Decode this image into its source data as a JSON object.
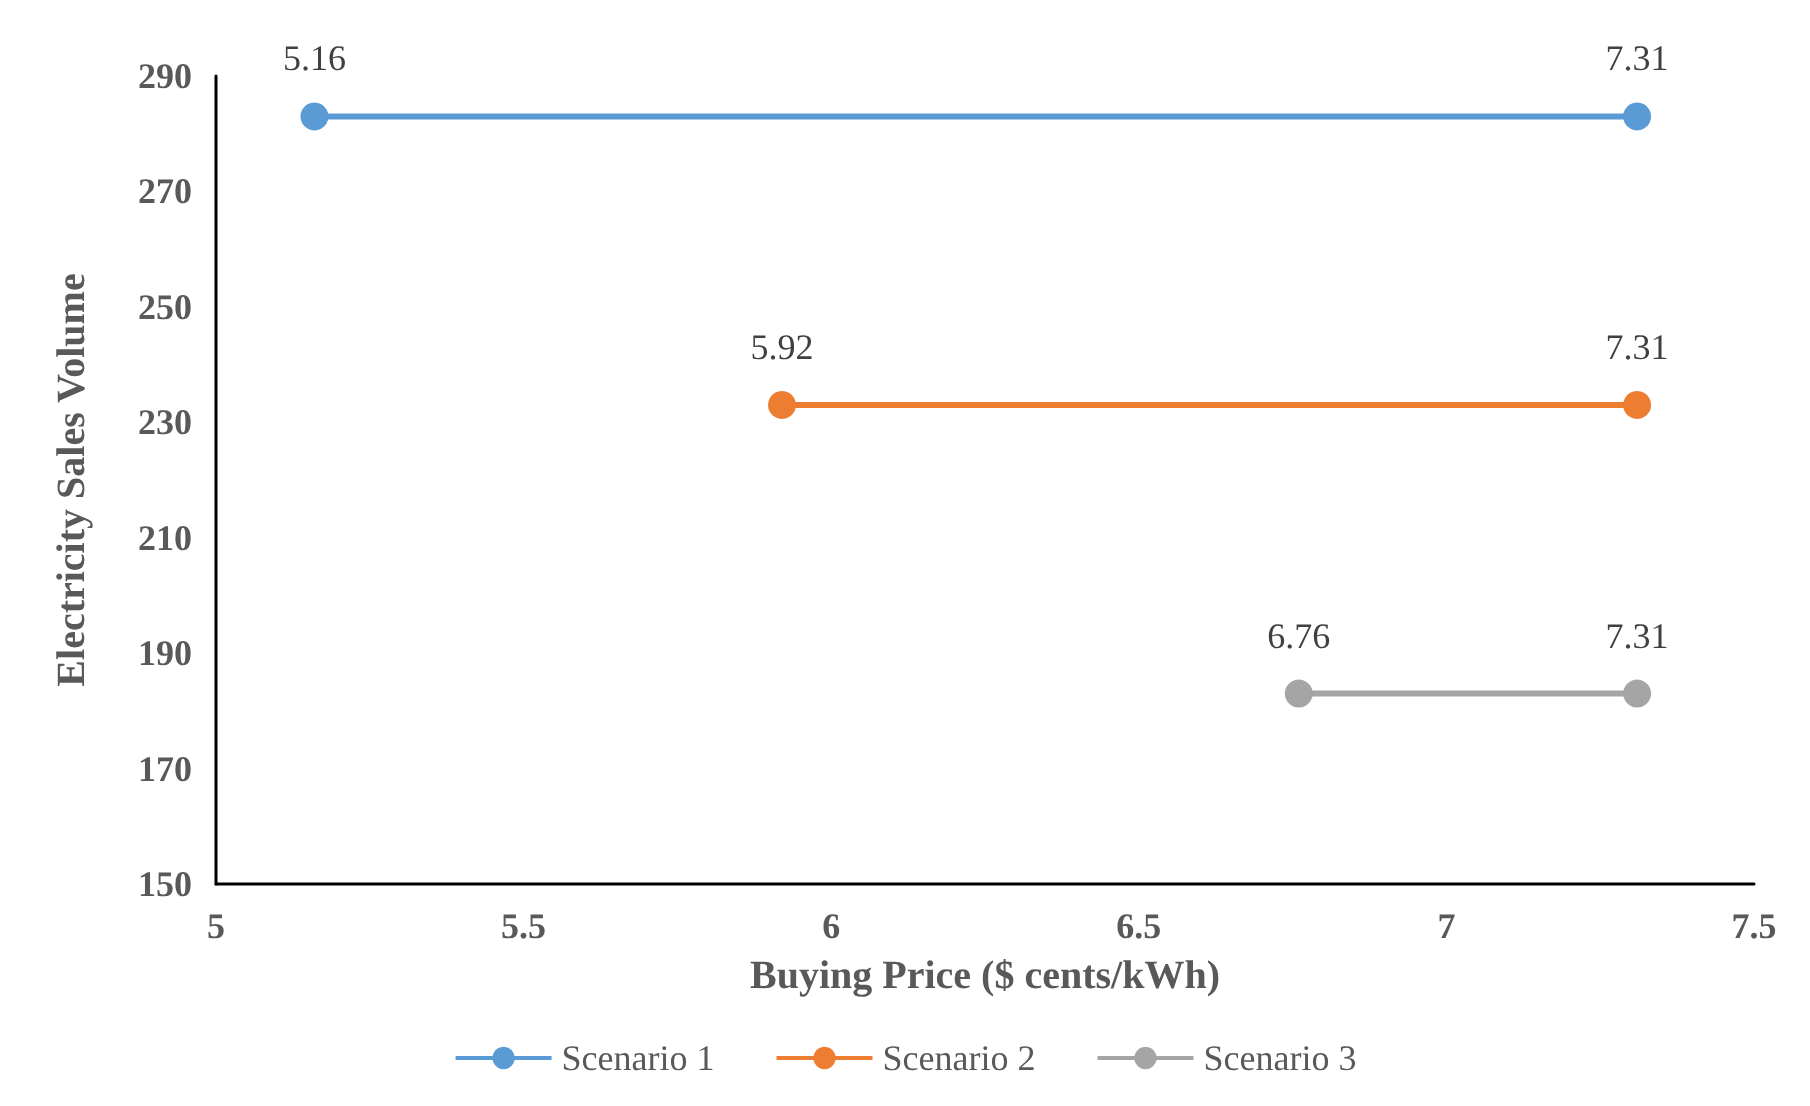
{
  "chart_data": {
    "type": "line",
    "xlabel": "Buying Price ($ cents/kWh)",
    "ylabel": "Electricity Sales Volume",
    "xlim": [
      5,
      7.5
    ],
    "xticks": [
      5,
      5.5,
      6,
      6.5,
      7,
      7.5
    ],
    "ylim": [
      150,
      290
    ],
    "yticks": [
      150,
      170,
      190,
      210,
      230,
      250,
      270,
      290
    ],
    "grid": false,
    "legend": "bottom",
    "marker": "circle",
    "line_style": "solid",
    "series": [
      {
        "name": "Scenario 1",
        "color": "#5b9bd5",
        "x": [
          5.16,
          7.31
        ],
        "values": [
          283,
          283
        ]
      },
      {
        "name": "Scenario 2",
        "color": "#ed7d31",
        "x": [
          5.92,
          7.31
        ],
        "values": [
          233,
          233
        ]
      },
      {
        "name": "Scenario 3",
        "color": "#a5a5a5",
        "x": [
          6.76,
          7.31
        ],
        "values": [
          183,
          183
        ]
      }
    ],
    "annotations": [
      {
        "text": "5.16",
        "x": 5.16,
        "y": 283
      },
      {
        "text": "7.31",
        "x": 7.31,
        "y": 283
      },
      {
        "text": "5.92",
        "x": 5.92,
        "y": 233
      },
      {
        "text": "7.31",
        "x": 7.31,
        "y": 233
      },
      {
        "text": "6.76",
        "x": 6.76,
        "y": 183
      },
      {
        "text": "7.31",
        "x": 7.31,
        "y": 183
      }
    ]
  }
}
